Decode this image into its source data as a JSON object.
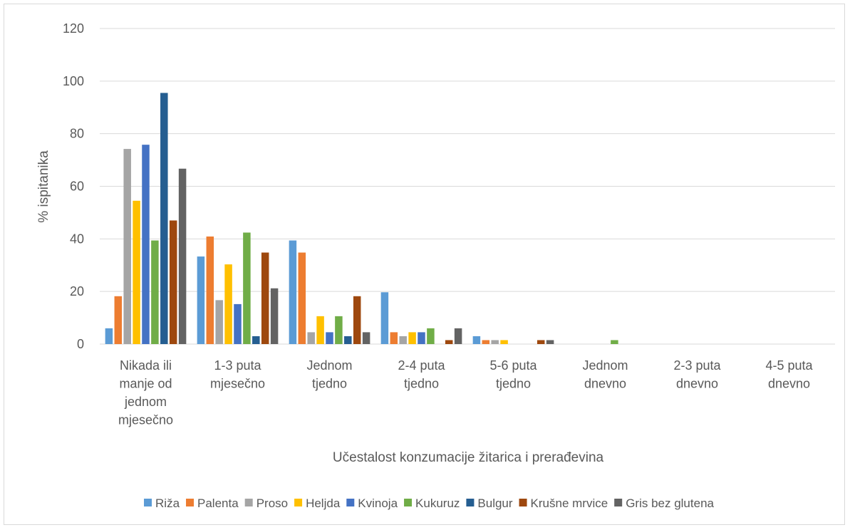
{
  "chart_data": {
    "type": "bar",
    "title": "",
    "xlabel": "Učestalost konzumacije žitarica i prerađevina",
    "ylabel": "% ispitanika",
    "ylim": [
      0,
      120
    ],
    "yticks": [
      "0",
      "20",
      "40",
      "60",
      "80",
      "100",
      "120"
    ],
    "grid": true,
    "legend_position": "bottom",
    "categories": [
      [
        "Nikada ili",
        "manje od",
        "jednom",
        "mjesečno"
      ],
      [
        "1-3 puta",
        "mjesečno"
      ],
      [
        "Jednom",
        "tjedno"
      ],
      [
        "2-4 puta",
        "tjedno"
      ],
      [
        "5-6 puta",
        "tjedno"
      ],
      [
        "Jednom",
        "dnevno"
      ],
      [
        "2-3 puta",
        "dnevno"
      ],
      [
        "4-5 puta",
        "dnevno"
      ]
    ],
    "series": [
      {
        "name": "Riža",
        "color": "#5b9bd5",
        "values": [
          6,
          33.3,
          39.4,
          19.7,
          3,
          0,
          0,
          0
        ]
      },
      {
        "name": "Palenta",
        "color": "#ed7d31",
        "values": [
          18.2,
          40.9,
          34.8,
          4.5,
          1.5,
          0,
          0,
          0
        ]
      },
      {
        "name": "Proso",
        "color": "#a5a5a5",
        "values": [
          74.2,
          16.7,
          4.5,
          3,
          1.5,
          0,
          0,
          0
        ]
      },
      {
        "name": "Heljda",
        "color": "#ffc000",
        "values": [
          54.5,
          30.3,
          10.6,
          4.5,
          1.5,
          0,
          0,
          0
        ]
      },
      {
        "name": "Kvinoja",
        "color": "#4472c4",
        "values": [
          75.8,
          15.2,
          4.5,
          4.5,
          0,
          0,
          0,
          0
        ]
      },
      {
        "name": "Kukuruz",
        "color": "#70ad47",
        "values": [
          39.4,
          42.4,
          10.6,
          6,
          0,
          1.5,
          0,
          0
        ]
      },
      {
        "name": "Bulgur",
        "color": "#255e91",
        "values": [
          95.5,
          3,
          3,
          0,
          0,
          0,
          0,
          0
        ]
      },
      {
        "name": "Krušne mrvice",
        "color": "#9e480e",
        "values": [
          47,
          34.8,
          18.2,
          1.5,
          1.5,
          0,
          0,
          0
        ]
      },
      {
        "name": "Gris bez glutena",
        "color": "#636363",
        "values": [
          66.7,
          21.2,
          4.5,
          6,
          1.5,
          0,
          0,
          0
        ]
      }
    ]
  }
}
